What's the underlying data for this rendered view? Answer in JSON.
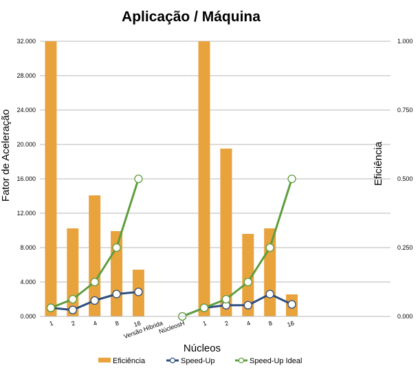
{
  "chart_data": {
    "type": "bar",
    "title": "Aplicação / Máquina",
    "xlabel": "Núcleos",
    "ylabel": "Fator de Aceleração",
    "y2label": "Eficiência",
    "categories": [
      "1",
      "2",
      "4",
      "8",
      "16",
      "Versão Híbrida",
      "NúcleosH",
      "1",
      "2",
      "4",
      "8",
      "16"
    ],
    "ylim": [
      0,
      32
    ],
    "y2lim": [
      0,
      1
    ],
    "yticks": [
      "0.000",
      "4.000",
      "8.000",
      "12.000",
      "16.000",
      "20.000",
      "24.000",
      "28.000",
      "32.000"
    ],
    "y2ticks": [
      "0.000",
      "0.250",
      "0.500",
      "0.750",
      "1.000"
    ],
    "grid": true,
    "legend_position": "bottom",
    "series": [
      {
        "name": "Eficiência",
        "kind": "bar",
        "axis": "right",
        "color": "#E8A33D",
        "values": [
          1.0,
          0.32,
          0.44,
          0.31,
          0.17,
          null,
          null,
          1.0,
          0.61,
          0.3,
          0.32,
          0.08
        ]
      },
      {
        "name": "Speed-Up",
        "kind": "line",
        "axis": "left",
        "color": "#2E4E7E",
        "values": [
          1.0,
          0.75,
          1.85,
          2.6,
          2.85,
          null,
          0,
          1.0,
          1.3,
          1.3,
          2.6,
          1.4
        ]
      },
      {
        "name": "Speed-Up Ideal",
        "kind": "line",
        "axis": "left",
        "color": "#5E9E3E",
        "values": [
          1,
          2,
          4,
          8,
          16,
          null,
          0,
          1,
          2,
          4,
          8,
          16
        ]
      }
    ]
  }
}
